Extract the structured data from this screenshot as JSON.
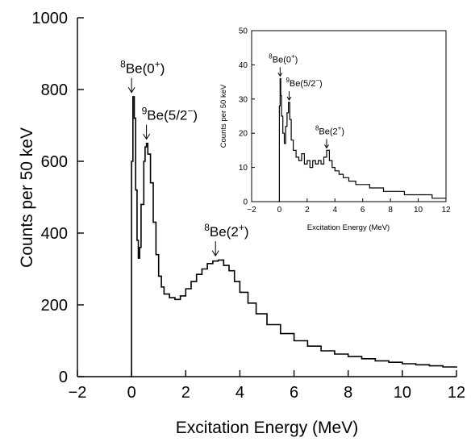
{
  "chart_data": [
    {
      "type": "histogram-step",
      "panel": "main",
      "xlabel": "Excitation Energy (MeV)",
      "ylabel": "Counts per 50 keV",
      "xlim": [
        -2,
        12
      ],
      "ylim": [
        0,
        1000
      ],
      "xticks": [
        "−2",
        "0",
        "2",
        "4",
        "6",
        "8",
        "10",
        "12"
      ],
      "yticks": [
        "0",
        "200",
        "400",
        "600",
        "800",
        "1000"
      ],
      "grid": false,
      "bin_width_mev": 0.05,
      "series": [
        {
          "points": [
            [
              -0.05,
              0
            ],
            [
              0,
              0
            ],
            [
              0.0,
              600
            ],
            [
              0.05,
              780
            ],
            [
              0.1,
              720
            ],
            [
              0.15,
              520
            ],
            [
              0.2,
              380
            ],
            [
              0.25,
              330
            ],
            [
              0.3,
              360
            ],
            [
              0.35,
              480
            ],
            [
              0.45,
              600
            ],
            [
              0.5,
              640
            ],
            [
              0.55,
              650
            ],
            [
              0.6,
              620
            ],
            [
              0.7,
              540
            ],
            [
              0.8,
              430
            ],
            [
              0.9,
              340
            ],
            [
              1.0,
              280
            ],
            [
              1.1,
              250
            ],
            [
              1.2,
              230
            ],
            [
              1.4,
              220
            ],
            [
              1.6,
              215
            ],
            [
              1.8,
              225
            ],
            [
              2.0,
              245
            ],
            [
              2.2,
              265
            ],
            [
              2.4,
              285
            ],
            [
              2.6,
              300
            ],
            [
              2.8,
              315
            ],
            [
              3.0,
              322
            ],
            [
              3.2,
              325
            ],
            [
              3.4,
              310
            ],
            [
              3.6,
              295
            ],
            [
              3.8,
              265
            ],
            [
              4.0,
              235
            ],
            [
              4.3,
              205
            ],
            [
              4.6,
              175
            ],
            [
              5.0,
              145
            ],
            [
              5.5,
              120
            ],
            [
              6.0,
              100
            ],
            [
              6.5,
              85
            ],
            [
              7.0,
              72
            ],
            [
              7.5,
              63
            ],
            [
              8.0,
              56
            ],
            [
              8.5,
              50
            ],
            [
              9.0,
              44
            ],
            [
              9.5,
              40
            ],
            [
              10.0,
              36
            ],
            [
              10.5,
              33
            ],
            [
              11.0,
              30
            ],
            [
              11.5,
              27
            ],
            [
              12.0,
              25
            ]
          ]
        }
      ],
      "annotations": [
        {
          "sup": "8",
          "text": "Be(0",
          "charge": "+",
          "x": 0.0,
          "y": 785
        },
        {
          "sup": "9",
          "text": "Be(5/2",
          "charge": "−",
          "x": 0.55,
          "y": 655
        },
        {
          "sup": "8",
          "text": "Be(2",
          "charge": "+",
          "x": 3.1,
          "y": 330
        }
      ]
    },
    {
      "type": "histogram-step",
      "panel": "inset",
      "xlabel": "Excitation Energy (MeV)",
      "ylabel": "Counts per 50 keV",
      "xlim": [
        -2,
        12
      ],
      "ylim": [
        0,
        50
      ],
      "xticks": [
        "−2",
        "0",
        "2",
        "4",
        "6",
        "8",
        "10",
        "12"
      ],
      "yticks": [
        "0",
        "10",
        "20",
        "30",
        "40",
        "50"
      ],
      "grid": false,
      "series": [
        {
          "points": [
            [
              -0.1,
              0
            ],
            [
              -0.05,
              0
            ],
            [
              0.0,
              28
            ],
            [
              0.05,
              36
            ],
            [
              0.1,
              31
            ],
            [
              0.15,
              25
            ],
            [
              0.25,
              20
            ],
            [
              0.35,
              17
            ],
            [
              0.45,
              22
            ],
            [
              0.55,
              26
            ],
            [
              0.65,
              29
            ],
            [
              0.75,
              24
            ],
            [
              0.85,
              18
            ],
            [
              1.0,
              15
            ],
            [
              1.2,
              13
            ],
            [
              1.4,
              12
            ],
            [
              1.6,
              14
            ],
            [
              1.8,
              11
            ],
            [
              2.0,
              12
            ],
            [
              2.2,
              10
            ],
            [
              2.4,
              12
            ],
            [
              2.6,
              11
            ],
            [
              2.8,
              12
            ],
            [
              3.0,
              11
            ],
            [
              3.2,
              13
            ],
            [
              3.4,
              15
            ],
            [
              3.6,
              12
            ],
            [
              3.8,
              10
            ],
            [
              4.0,
              9
            ],
            [
              4.3,
              8
            ],
            [
              4.6,
              7
            ],
            [
              5.0,
              6
            ],
            [
              5.5,
              5
            ],
            [
              6.0,
              5
            ],
            [
              6.5,
              4
            ],
            [
              7.0,
              4
            ],
            [
              7.5,
              3
            ],
            [
              8.0,
              3
            ],
            [
              8.5,
              3
            ],
            [
              9.0,
              2
            ],
            [
              9.5,
              2
            ],
            [
              10.0,
              2
            ],
            [
              10.5,
              2
            ],
            [
              11.0,
              1
            ],
            [
              11.5,
              1
            ],
            [
              12.0,
              1
            ]
          ]
        }
      ],
      "annotations": [
        {
          "sup": "8",
          "text": "Be(0",
          "charge": "+",
          "x": 0.05,
          "y": 36
        },
        {
          "sup": "9",
          "text": "Be(5/2",
          "charge": "−",
          "x": 0.7,
          "y": 29
        },
        {
          "sup": "8",
          "text": "Be(2",
          "charge": "+",
          "x": 3.4,
          "y": 15
        }
      ]
    }
  ]
}
